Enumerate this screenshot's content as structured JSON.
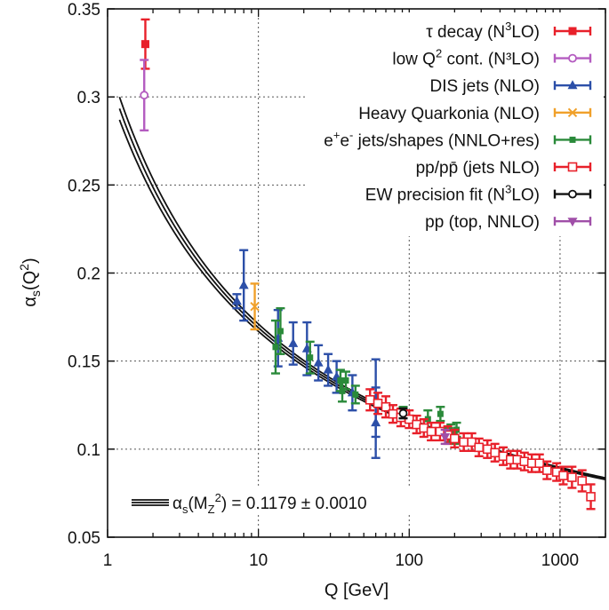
{
  "chart_data": {
    "type": "scatter",
    "x_scale": "log",
    "xlim": [
      1,
      2000
    ],
    "ylim": [
      0.05,
      0.35
    ],
    "xlabel": "Q [GeV]",
    "ylabel": {
      "base": "α",
      "sub": "s",
      "suffix": "(Q",
      "sup": "2",
      "end": ")"
    },
    "x_ticks": [
      {
        "v": 1,
        "label": "1"
      },
      {
        "v": 10,
        "label": "10"
      },
      {
        "v": 100,
        "label": "100"
      },
      {
        "v": 1000,
        "label": "1000"
      }
    ],
    "y_ticks": [
      {
        "v": 0.05,
        "label": "0.05"
      },
      {
        "v": 0.1,
        "label": "0.1"
      },
      {
        "v": 0.15,
        "label": "0.15"
      },
      {
        "v": 0.2,
        "label": "0.2"
      },
      {
        "v": 0.25,
        "label": "0.25"
      },
      {
        "v": 0.3,
        "label": "0.3"
      },
      {
        "v": 0.35,
        "label": "0.35"
      }
    ],
    "grid": true,
    "band": {
      "alphas_mz": 0.1179,
      "uncertainty": 0.001,
      "mz": 91.1876
    },
    "band_legend": {
      "pre": "α",
      "sub1": "s",
      "mid": "(M",
      "sub2": "Z",
      "sup": "2",
      "post": ") = 0.1179 ± 0.0010"
    },
    "legend_position": "top-right",
    "series": [
      {
        "key": "tau",
        "color": "#e8202a",
        "marker": "square-filled",
        "name": {
          "pre": "τ decay (N",
          "sup": "3",
          "post": "LO)"
        },
        "points": [
          {
            "x": 1.78,
            "y": 0.33,
            "err": 0.014
          }
        ]
      },
      {
        "key": "lowq",
        "color": "#b45cc0",
        "marker": "circle-open",
        "name": {
          "pre": "low Q",
          "sup": "2",
          "post": " cont. (N³LO)"
        },
        "points": [
          {
            "x": 1.75,
            "y": 0.301,
            "err": 0.02
          }
        ]
      },
      {
        "key": "dis",
        "color": "#2c4fa8",
        "marker": "triangle-up",
        "name": {
          "pre": "DIS jets (NLO)"
        },
        "points": [
          {
            "x": 7.2,
            "y": 0.184,
            "err": 0.004
          },
          {
            "x": 8.0,
            "y": 0.193,
            "err": 0.02
          },
          {
            "x": 13.5,
            "y": 0.163,
            "err": 0.016
          },
          {
            "x": 17,
            "y": 0.16,
            "err": 0.012
          },
          {
            "x": 21,
            "y": 0.157,
            "err": 0.015
          },
          {
            "x": 25,
            "y": 0.149,
            "err": 0.01
          },
          {
            "x": 29,
            "y": 0.145,
            "err": 0.009
          },
          {
            "x": 33,
            "y": 0.141,
            "err": 0.009
          },
          {
            "x": 42,
            "y": 0.132,
            "err": 0.01
          },
          {
            "x": 60,
            "y": 0.129,
            "err": 0.022
          },
          {
            "x": 60,
            "y": 0.115,
            "err": 0.02
          }
        ]
      },
      {
        "key": "quarkonia",
        "color": "#f0a02a",
        "marker": "cross",
        "name": {
          "pre": "Heavy Quarkonia (NLO)"
        },
        "points": [
          {
            "x": 9.46,
            "y": 0.181,
            "err": 0.013
          }
        ]
      },
      {
        "key": "ee",
        "color": "#2a8a3a",
        "marker": "square-small",
        "name": {
          "pre": "e",
          "sup": "+",
          "pre2": "e",
          "sup2": "-",
          "post": " jets/shapes (NNLO+res)"
        },
        "points": [
          {
            "x": 13,
            "y": 0.158,
            "err": 0.015
          },
          {
            "x": 14,
            "y": 0.167,
            "err": 0.013
          },
          {
            "x": 22,
            "y": 0.152,
            "err": 0.009
          },
          {
            "x": 35,
            "y": 0.139,
            "err": 0.006
          },
          {
            "x": 36,
            "y": 0.133,
            "err": 0.006
          },
          {
            "x": 38,
            "y": 0.139,
            "err": 0.005
          },
          {
            "x": 44,
            "y": 0.131,
            "err": 0.005
          },
          {
            "x": 91.2,
            "y": 0.121,
            "err": 0.003
          },
          {
            "x": 133,
            "y": 0.117,
            "err": 0.005
          },
          {
            "x": 161,
            "y": 0.12,
            "err": 0.004
          },
          {
            "x": 183,
            "y": 0.108,
            "err": 0.004
          },
          {
            "x": 189,
            "y": 0.11,
            "err": 0.004
          },
          {
            "x": 200,
            "y": 0.107,
            "err": 0.004
          },
          {
            "x": 206,
            "y": 0.111,
            "err": 0.004
          }
        ]
      },
      {
        "key": "pp",
        "color": "#e8202a",
        "marker": "square-open",
        "name": {
          "pre": "pp/pp̄ (jets NLO)"
        },
        "points": [
          {
            "x": 55,
            "y": 0.128,
            "err": 0.006
          },
          {
            "x": 62,
            "y": 0.126,
            "err": 0.006
          },
          {
            "x": 70,
            "y": 0.124,
            "err": 0.006
          },
          {
            "x": 78,
            "y": 0.12,
            "err": 0.005
          },
          {
            "x": 88,
            "y": 0.118,
            "err": 0.005
          },
          {
            "x": 100,
            "y": 0.117,
            "err": 0.005
          },
          {
            "x": 112,
            "y": 0.114,
            "err": 0.005
          },
          {
            "x": 125,
            "y": 0.112,
            "err": 0.005
          },
          {
            "x": 140,
            "y": 0.11,
            "err": 0.005
          },
          {
            "x": 160,
            "y": 0.11,
            "err": 0.005
          },
          {
            "x": 180,
            "y": 0.108,
            "err": 0.005
          },
          {
            "x": 200,
            "y": 0.106,
            "err": 0.005
          },
          {
            "x": 230,
            "y": 0.104,
            "err": 0.005
          },
          {
            "x": 260,
            "y": 0.104,
            "err": 0.005
          },
          {
            "x": 290,
            "y": 0.101,
            "err": 0.005
          },
          {
            "x": 330,
            "y": 0.1,
            "err": 0.005
          },
          {
            "x": 370,
            "y": 0.098,
            "err": 0.005
          },
          {
            "x": 420,
            "y": 0.096,
            "err": 0.005
          },
          {
            "x": 470,
            "y": 0.094,
            "err": 0.005
          },
          {
            "x": 520,
            "y": 0.094,
            "err": 0.005
          },
          {
            "x": 580,
            "y": 0.093,
            "err": 0.005
          },
          {
            "x": 650,
            "y": 0.092,
            "err": 0.005
          },
          {
            "x": 730,
            "y": 0.092,
            "err": 0.005
          },
          {
            "x": 820,
            "y": 0.088,
            "err": 0.005
          },
          {
            "x": 950,
            "y": 0.087,
            "err": 0.005
          },
          {
            "x": 1050,
            "y": 0.085,
            "err": 0.005
          },
          {
            "x": 1200,
            "y": 0.084,
            "err": 0.006
          },
          {
            "x": 1400,
            "y": 0.082,
            "err": 0.006
          },
          {
            "x": 1600,
            "y": 0.073,
            "err": 0.007
          }
        ]
      },
      {
        "key": "ew",
        "color": "#111111",
        "marker": "circle-open",
        "name": {
          "pre": "EW precision fit (N",
          "sup": "3",
          "post": "LO)"
        },
        "points": [
          {
            "x": 91.19,
            "y": 0.1203,
            "err": 0.0028
          }
        ]
      },
      {
        "key": "top",
        "color": "#a04fa8",
        "marker": "triangle-down",
        "name": {
          "pre": "pp (top, NNLO)"
        },
        "points": [
          {
            "x": 173,
            "y": 0.107,
            "err": 0.004
          }
        ]
      }
    ]
  }
}
